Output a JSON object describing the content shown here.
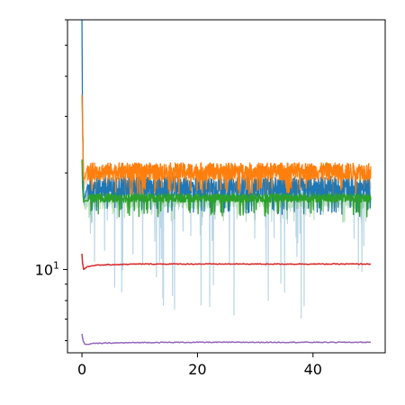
{
  "chart_data": {
    "type": "line",
    "title": "",
    "xlabel": "",
    "ylabel": "",
    "xlim": [
      -2.5,
      52.5
    ],
    "ylim": [
      5.5,
      60
    ],
    "yscale": "log",
    "grid": false,
    "x_ticks": [
      {
        "value": 0,
        "label": "0"
      },
      {
        "value": 20,
        "label": "20"
      },
      {
        "value": 40,
        "label": "40"
      }
    ],
    "y_ticks_major": [
      {
        "value": 10,
        "label": "10",
        "exponent": "1"
      }
    ],
    "y_ticks_minor": [
      6,
      7,
      8,
      9,
      20,
      30,
      40,
      50,
      60
    ],
    "series": [
      {
        "color": "#1f77b4",
        "noisy_shadow": true,
        "shadow_range": [
          7.0,
          19.0
        ],
        "x": [
          0,
          0.1,
          0.3,
          0.6,
          1,
          2,
          5,
          10,
          20,
          30,
          40,
          50
        ],
        "y": [
          60,
          30,
          16.5,
          17.0,
          17.5,
          18.0,
          18.0,
          18.0,
          18.0,
          18.0,
          18.0,
          18.0
        ],
        "noise_low": 16.5,
        "noise_high": 19.5
      },
      {
        "color": "#ff7f0e",
        "noisy_shadow": true,
        "shadow_range": [
          17.0,
          21.5
        ],
        "x": [
          0,
          0.1,
          0.3,
          0.6,
          1,
          2,
          5,
          10,
          20,
          30,
          40,
          50
        ],
        "y": [
          35,
          28,
          19.0,
          19.5,
          20.0,
          20.0,
          20.0,
          20.0,
          20.0,
          20.0,
          20.0,
          20.0
        ],
        "noise_low": 19.0,
        "noise_high": 21.5
      },
      {
        "color": "#2ca02c",
        "noisy_shadow": true,
        "shadow_range": [
          14.0,
          17.5
        ],
        "x": [
          0,
          0.1,
          0.3,
          0.6,
          1,
          2,
          5,
          10,
          20,
          30,
          40,
          50
        ],
        "y": [
          22,
          18,
          16.2,
          16.4,
          16.5,
          16.6,
          16.6,
          16.6,
          16.6,
          16.6,
          16.6,
          16.6
        ],
        "noise_low": 16.2,
        "noise_high": 17.2
      },
      {
        "color": "#d62728",
        "noisy_shadow": false,
        "x": [
          0,
          0.1,
          0.3,
          0.6,
          1,
          2,
          5,
          10,
          20,
          30,
          40,
          50
        ],
        "y": [
          11.2,
          10.5,
          10.0,
          10.1,
          10.2,
          10.3,
          10.35,
          10.4,
          10.4,
          10.4,
          10.4,
          10.4
        ]
      },
      {
        "color": "#9467bd",
        "noisy_shadow": false,
        "x": [
          0,
          0.2,
          0.5,
          1,
          2,
          5,
          10,
          20,
          30,
          40,
          50
        ],
        "y": [
          6.3,
          6.0,
          5.85,
          5.85,
          5.88,
          5.9,
          5.92,
          5.93,
          5.93,
          5.93,
          5.93
        ]
      }
    ]
  }
}
